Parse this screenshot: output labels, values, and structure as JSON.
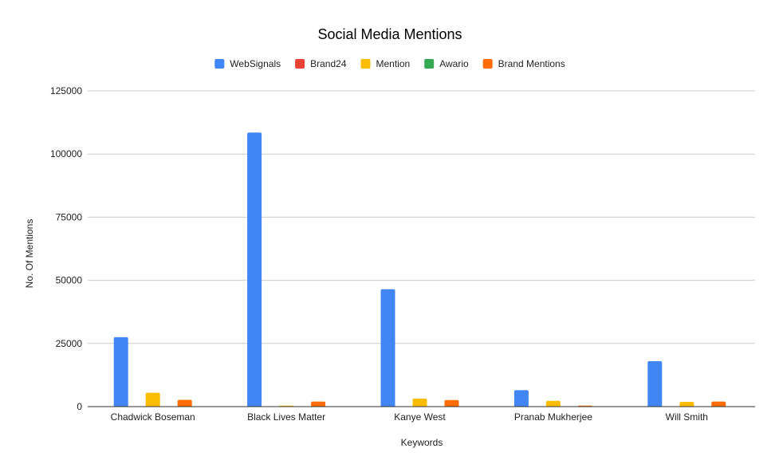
{
  "chart_data": {
    "type": "bar",
    "title": "Social Media Mentions",
    "xlabel": "Keywords",
    "ylabel": "No. Of Mentions",
    "categories": [
      "Chadwick Boseman",
      "Black Lives Matter",
      "Kanye West",
      "Pranab Mukherjee",
      "Will Smith"
    ],
    "series": [
      {
        "name": "WebSignals",
        "color": "#4285f4",
        "values": [
          27500,
          108500,
          46500,
          6500,
          18000
        ]
      },
      {
        "name": "Brand24",
        "color": "#ea4335",
        "values": [
          0,
          0,
          0,
          0,
          0
        ]
      },
      {
        "name": "Mention",
        "color": "#fbbc04",
        "values": [
          5500,
          400,
          3200,
          2300,
          1900
        ]
      },
      {
        "name": "Awario",
        "color": "#34a853",
        "values": [
          0,
          0,
          0,
          0,
          0
        ]
      },
      {
        "name": "Brand Mentions",
        "color": "#ff6d01",
        "values": [
          2700,
          2000,
          2600,
          400,
          2000
        ]
      }
    ],
    "ylim": [
      0,
      125000
    ],
    "yticks": [
      0,
      25000,
      50000,
      75000,
      100000,
      125000
    ],
    "grid": true,
    "legend_position": "top"
  }
}
